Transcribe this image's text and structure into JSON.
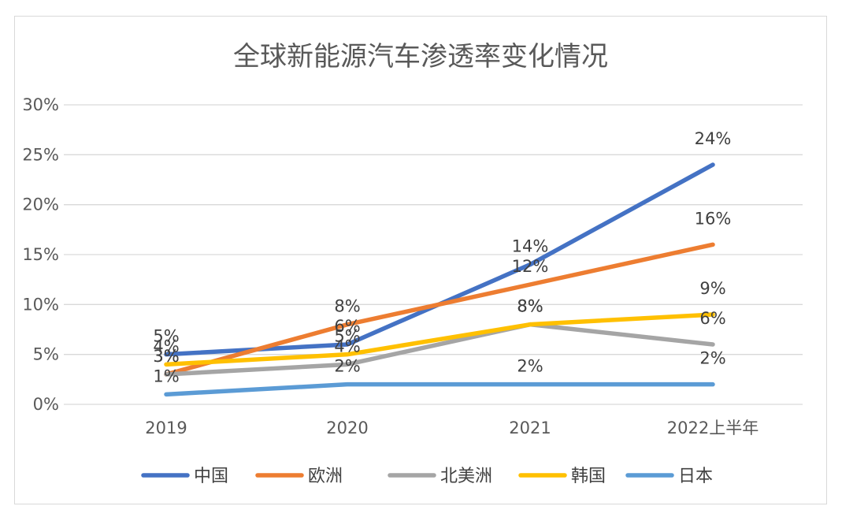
{
  "chart_data": {
    "type": "line",
    "title": "全球新能源汽车渗透率变化情况",
    "xlabel": "",
    "ylabel": "",
    "categories": [
      "2019",
      "2020",
      "2021",
      "2022上半年"
    ],
    "ylim": [
      0,
      30
    ],
    "yticks": [
      0,
      5,
      10,
      15,
      20,
      25,
      30
    ],
    "ytick_labels": [
      "0%",
      "5%",
      "10%",
      "15%",
      "20%",
      "25%",
      "30%"
    ],
    "grid": true,
    "legend_position": "bottom",
    "series": [
      {
        "name": "中国",
        "color": "#4472C4",
        "values": [
          5,
          6,
          14,
          24
        ],
        "labels": [
          "5%",
          "6%",
          "14%",
          "24%"
        ]
      },
      {
        "name": "欧洲",
        "color": "#ED7D31",
        "values": [
          3,
          8,
          12,
          16
        ],
        "labels": [
          "3%",
          "8%",
          "12%",
          "16%"
        ]
      },
      {
        "name": "北美洲",
        "color": "#A5A5A5",
        "values": [
          3,
          4,
          8,
          6
        ],
        "labels": [
          "3%",
          "4%",
          "8%",
          "6%"
        ]
      },
      {
        "name": "韩国",
        "color": "#FFC000",
        "values": [
          4,
          5,
          8,
          9
        ],
        "labels": [
          "4%",
          "5%",
          "8%",
          "9%"
        ]
      },
      {
        "name": "日本",
        "color": "#5B9BD5",
        "values": [
          1,
          2,
          2,
          2
        ],
        "labels": [
          "1%",
          "2%",
          "2%",
          "2%"
        ]
      }
    ]
  }
}
